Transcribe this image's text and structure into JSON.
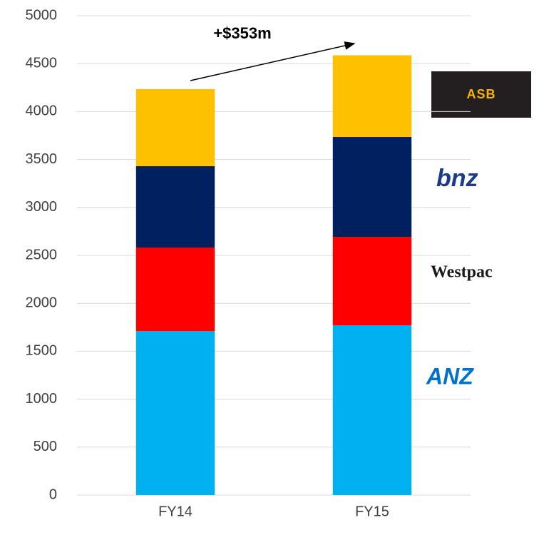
{
  "chart_data": {
    "type": "stacked_bar",
    "categories": [
      "FY14",
      "FY15"
    ],
    "series": [
      {
        "name": "ANZ",
        "color": "#00b0f0",
        "values": [
          1711,
          1771
        ]
      },
      {
        "name": "Westpac",
        "color": "#ff0000",
        "values": [
          871,
          922
        ]
      },
      {
        "name": "bnz",
        "color": "#002060",
        "values": [
          848,
          1042
        ]
      },
      {
        "name": "ASB",
        "color": "#ffc000",
        "values": [
          804,
          852
        ]
      }
    ],
    "ylim": [
      0,
      5000
    ],
    "yticks": [
      0,
      500,
      1000,
      1500,
      2000,
      2500,
      3000,
      3500,
      4000,
      4500,
      5000
    ],
    "grid": true,
    "annotation": "+$353m"
  }
}
